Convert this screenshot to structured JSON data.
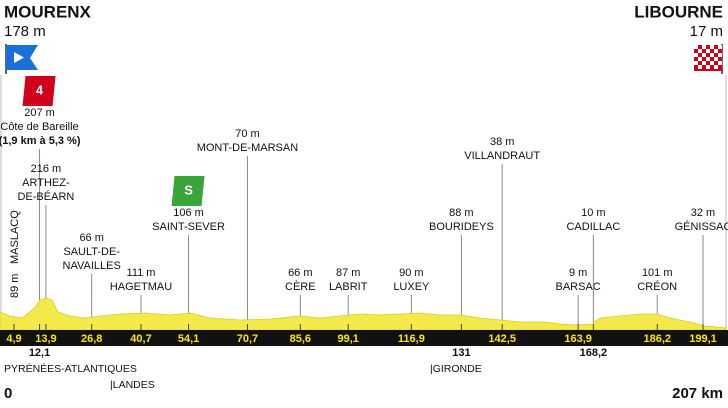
{
  "start": {
    "name": "MOURENX",
    "altitude": "178 m",
    "distance": "0"
  },
  "finish": {
    "name": "LIBOURNE",
    "altitude": "17 m",
    "distance": "207 km"
  },
  "regions": [
    "PYRÉNÉES-ATLANTIQUES",
    "|LANDES",
    "|GIRONDE"
  ],
  "waypoints": [
    {
      "km": {
        "value": 4.9,
        "label": "4,9"
      },
      "altitude": "89 m",
      "name": [
        "MASLACQ"
      ]
    },
    {
      "km": {
        "value": 12.1,
        "label": "12,1"
      },
      "altitude": "207 m",
      "name": [
        "Côte de Bareille"
      ],
      "note": "(1,9 km à 5,3 %)",
      "badge": "4"
    },
    {
      "km": {
        "value": 13.9,
        "label": "13,9"
      },
      "altitude": "216 m",
      "name": [
        "ARTHEZ-",
        "DE-BÉARN"
      ]
    },
    {
      "km": {
        "value": 26.8,
        "label": "26,8"
      },
      "altitude": "66 m",
      "name": [
        "SAULT-DE-",
        "NAVAILLES"
      ]
    },
    {
      "km": {
        "value": 40.7,
        "label": "40,7"
      },
      "altitude": "111 m",
      "name": [
        "HAGETMAU"
      ]
    },
    {
      "km": {
        "value": 54.1,
        "label": "54,1"
      },
      "altitude": "106 m",
      "name": [
        "SAINT-SEVER"
      ],
      "badge": "S"
    },
    {
      "km": {
        "value": 70.7,
        "label": "70,7"
      },
      "altitude": "70 m",
      "name": [
        "MONT-DE-MARSAN"
      ]
    },
    {
      "km": {
        "value": 85.6,
        "label": "85,6"
      },
      "altitude": "66 m",
      "name": [
        "CÈRE"
      ]
    },
    {
      "km": {
        "value": 99.1,
        "label": "99,1"
      },
      "altitude": "87 m",
      "name": [
        "LABRIT"
      ]
    },
    {
      "km": {
        "value": 116.9,
        "label": "116,9"
      },
      "altitude": "90 m",
      "name": [
        "LUXEY"
      ]
    },
    {
      "km": 131,
      "altitude": "88 m",
      "name": [
        "BOURIDEYS"
      ]
    },
    {
      "km": {
        "value": 142.5,
        "label": "142,5"
      },
      "altitude": "38 m",
      "name": [
        "VILLANDRAUT"
      ]
    },
    {
      "km": {
        "value": 163.9,
        "label": "163,9"
      },
      "altitude": "9 m",
      "name": [
        "BARSAC"
      ]
    },
    {
      "km": {
        "value": 168.2,
        "label": "168,2"
      },
      "altitude": "10 m",
      "name": [
        "CADILLAC"
      ]
    },
    {
      "km": {
        "value": 186.2,
        "label": "186,2"
      },
      "altitude": "101 m",
      "name": [
        "CRÉON"
      ]
    },
    {
      "km": {
        "value": 199.1,
        "label": "199,1"
      },
      "altitude": "32 m",
      "name": [
        "GÉNISSAC"
      ]
    }
  ]
}
